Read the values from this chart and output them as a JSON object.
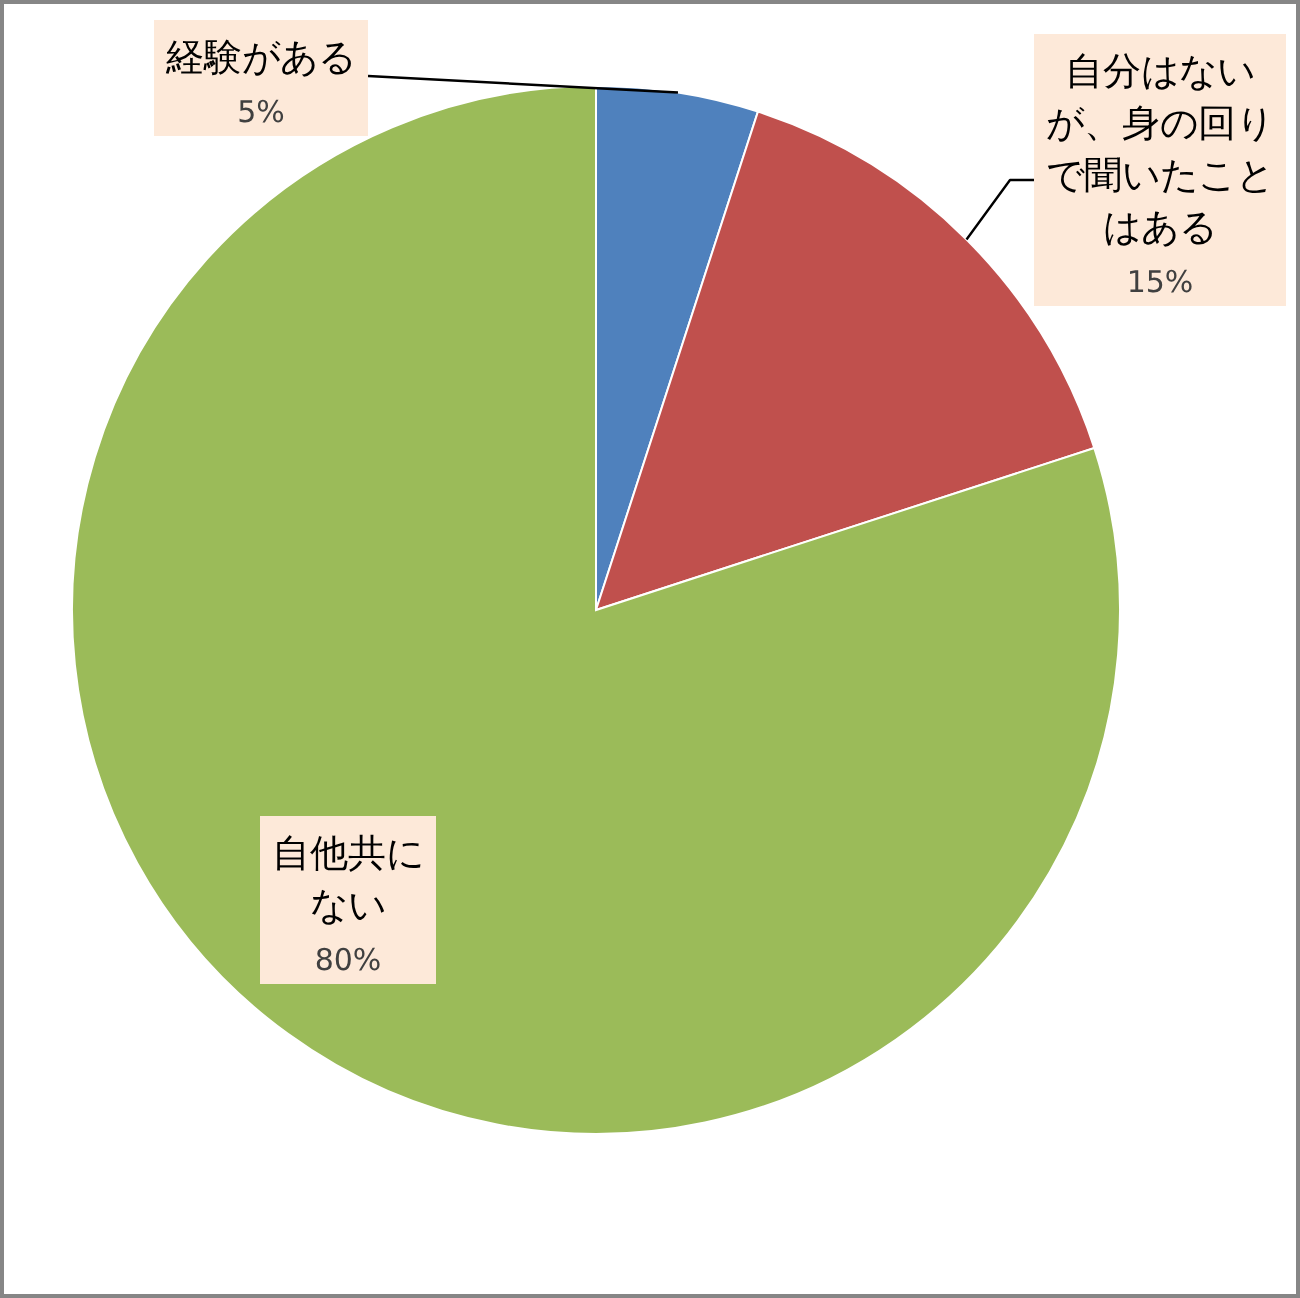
{
  "chart_data": {
    "type": "pie",
    "categories": [
      "経験がある",
      "自分はないが、身の回りで聞いたことはある",
      "自他共にない"
    ],
    "values": [
      5,
      15,
      80
    ],
    "colors": [
      "#4f81bd",
      "#c0504d",
      "#9bbb59"
    ],
    "value_labels": [
      "5%",
      "15%",
      "80%"
    ]
  }
}
